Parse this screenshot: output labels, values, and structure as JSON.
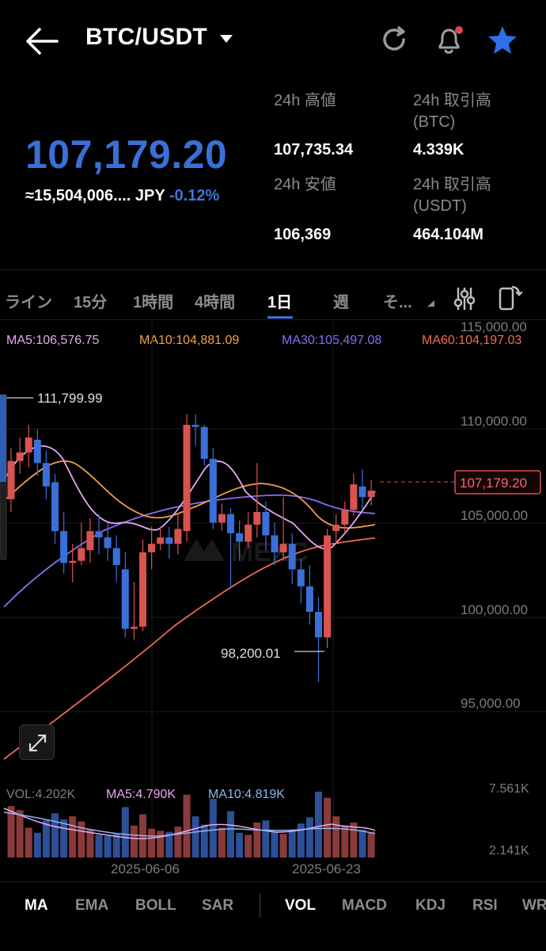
{
  "header": {
    "pair": "BTC/USDT",
    "back_icon": "arrow-left-icon",
    "refresh_icon": "refresh-icon",
    "bell_icon": "bell-icon",
    "star_icon": "star-icon"
  },
  "ticker": {
    "last_price": "107,179.20",
    "jpy_value": "≈15,504,006.... JPY",
    "change_pct": "-0.12%",
    "stats": {
      "high_label": "24h 高値",
      "high_value": "107,735.34",
      "low_label": "24h 安値",
      "low_value": "106,369",
      "vol_btc_label_1": "24h 取引高",
      "vol_btc_label_2": "(BTC)",
      "vol_btc_value": "4.339K",
      "vol_usdt_label_1": "24h 取引高",
      "vol_usdt_label_2": "(USDT)",
      "vol_usdt_value": "464.104M"
    }
  },
  "timeframes": {
    "items": [
      "ライン",
      "15分",
      "1時間",
      "4時間",
      "1日",
      "週",
      "そ..."
    ],
    "active": "1日"
  },
  "ma_legend": {
    "ma5": "MA5:106,576.75",
    "ma10": "MA10:104,881.09",
    "ma30": "MA30:105,497.08",
    "ma60": "MA60:104,197.03"
  },
  "chart": {
    "y_ticks": [
      "115,000.00",
      "110,000.00",
      "105,000.00",
      "100,000.00",
      "95,000.00"
    ],
    "high_marker": "111,799.99",
    "low_marker": "98,200.01",
    "current_price_tag": "107,179.20",
    "watermark": "MEXC",
    "colors": {
      "up": "#d9534f",
      "down": "#3b6fd8",
      "ma5": "#e9a8f0",
      "ma10": "#f0a14a",
      "ma30": "#8a6cf5",
      "ma60": "#f06b55"
    }
  },
  "chart_data": {
    "type": "candlestick",
    "x_labels": [
      "2025-06-06",
      "2025-06-23"
    ],
    "ylim": [
      93000,
      115000
    ],
    "series": [
      {
        "name": "MA5",
        "value": 106576.75
      },
      {
        "name": "MA10",
        "value": 104881.09
      },
      {
        "name": "MA30",
        "value": 105497.08
      },
      {
        "name": "MA60",
        "value": 104197.03
      }
    ],
    "annotations": {
      "high": 111799.99,
      "low": 98200.01,
      "last": 107179.2
    }
  },
  "volume": {
    "vol": "VOL:4.202K",
    "ma5": "MA5:4.790K",
    "ma10": "MA10:4.819K",
    "y_top": "7.561K",
    "y_bottom": "2.141K",
    "dates": [
      "2025-06-06",
      "2025-06-23"
    ]
  },
  "indicators": {
    "main": [
      "MA",
      "EMA",
      "BOLL",
      "SAR"
    ],
    "sub": [
      "VOL",
      "MACD",
      "KDJ",
      "RSI",
      "WR"
    ]
  }
}
